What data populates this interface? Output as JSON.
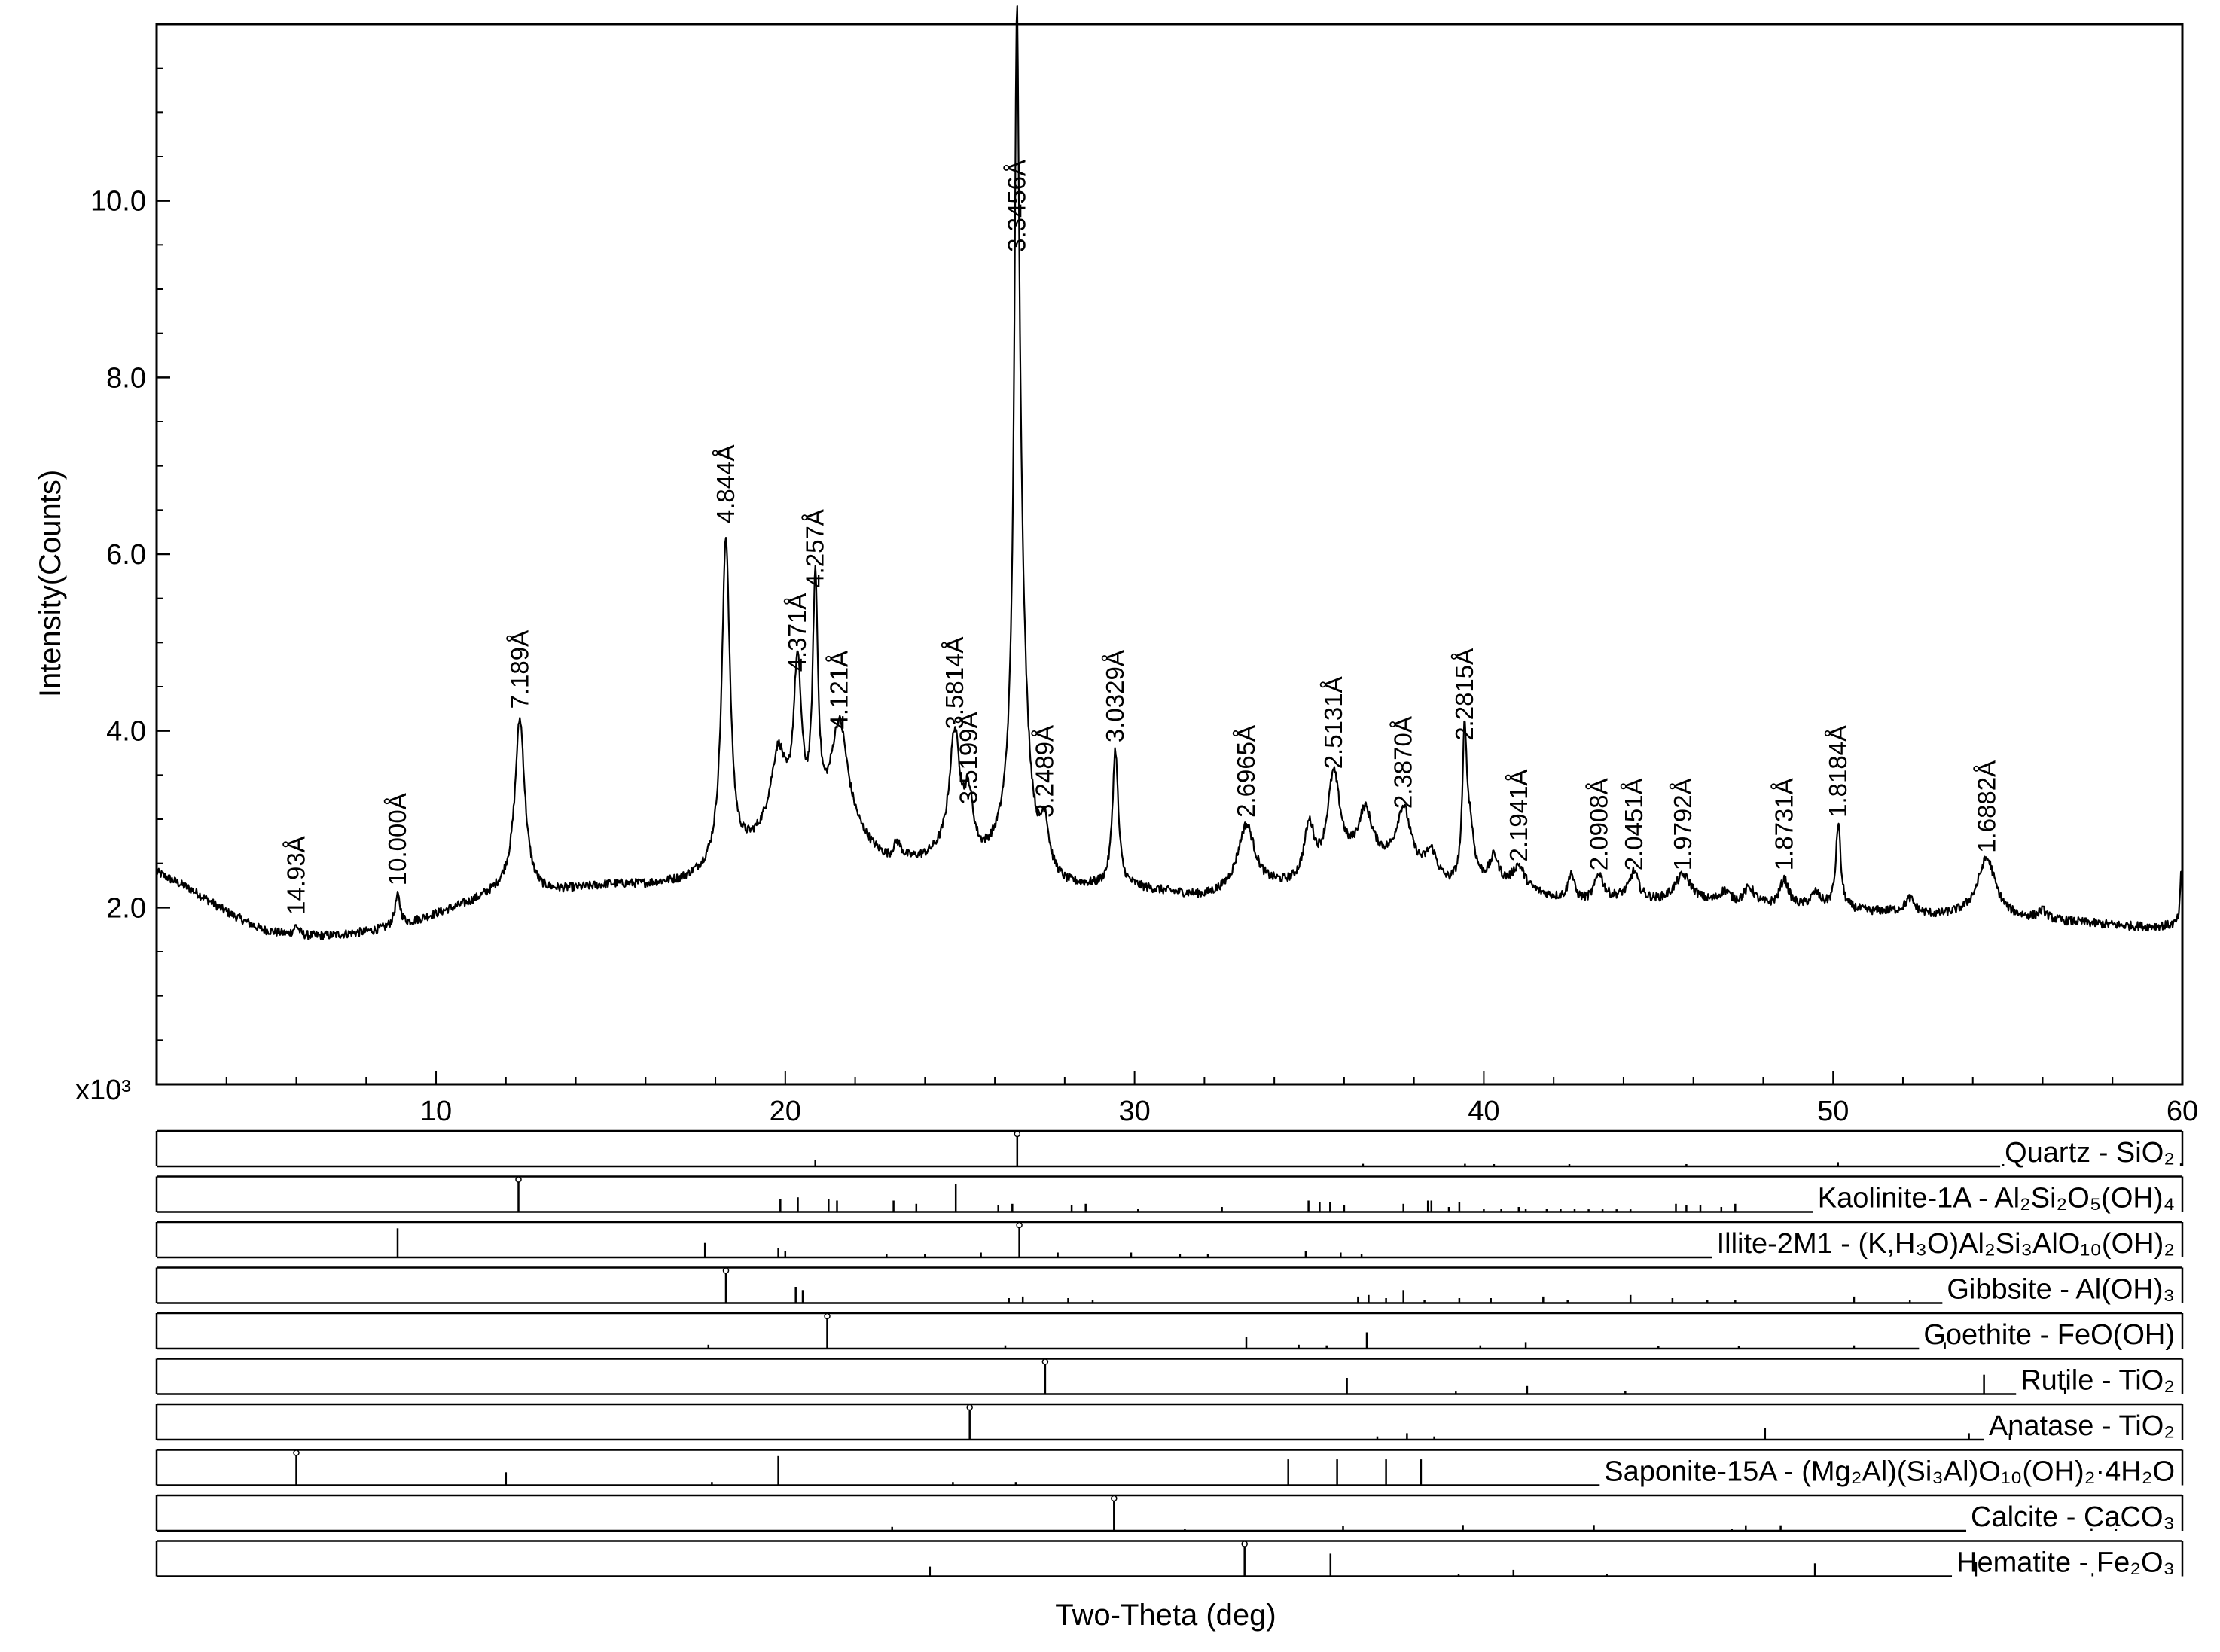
{
  "chart_data": {
    "type": "line",
    "title": "",
    "xlabel": "Two-Theta (deg)",
    "ylabel": "Intensity(Counts)",
    "y_multiplier_label": "x10³",
    "xlim": [
      2,
      60
    ],
    "ylim": [
      0,
      12
    ],
    "x_ticks": [
      "10",
      "20",
      "30",
      "40",
      "50",
      "60"
    ],
    "y_ticks": [
      "2.0",
      "4.0",
      "6.0",
      "8.0",
      "10.0"
    ],
    "grid": false,
    "legend": "none",
    "colors": {
      "line": "#000000",
      "background": "#ffffff"
    },
    "pattern": {
      "baseline": [
        [
          2.0,
          2.4
        ],
        [
          3.0,
          2.2
        ],
        [
          4.0,
          1.95
        ],
        [
          5.0,
          1.75
        ],
        [
          6.0,
          1.67
        ],
        [
          7.0,
          1.68
        ],
        [
          8.0,
          1.72
        ],
        [
          9.0,
          1.78
        ],
        [
          10.0,
          1.92
        ],
        [
          11.0,
          2.05
        ],
        [
          12.0,
          2.2
        ],
        [
          13.0,
          2.15
        ],
        [
          14.0,
          2.2
        ],
        [
          15.0,
          2.25
        ],
        [
          16.0,
          2.25
        ],
        [
          17.0,
          2.28
        ],
        [
          17.6,
          2.35
        ],
        [
          18.6,
          2.5
        ],
        [
          19.5,
          2.75
        ],
        [
          21.0,
          2.75
        ],
        [
          22.0,
          2.7
        ],
        [
          23.0,
          2.45
        ],
        [
          24.0,
          2.5
        ],
        [
          24.8,
          2.6
        ],
        [
          25.6,
          2.45
        ],
        [
          26.2,
          2.5
        ],
        [
          27.0,
          2.4
        ],
        [
          28.0,
          2.2
        ],
        [
          29.0,
          2.2
        ],
        [
          30.0,
          2.2
        ],
        [
          31.0,
          2.15
        ],
        [
          32.0,
          2.1
        ],
        [
          33.0,
          2.15
        ],
        [
          34.0,
          2.2
        ],
        [
          35.0,
          2.2
        ],
        [
          36.0,
          2.4
        ],
        [
          37.0,
          2.45
        ],
        [
          38.0,
          2.35
        ],
        [
          39.0,
          2.2
        ],
        [
          40.0,
          2.25
        ],
        [
          41.0,
          2.2
        ],
        [
          42.0,
          2.1
        ],
        [
          43.0,
          2.05
        ],
        [
          44.0,
          2.1
        ],
        [
          45.0,
          2.05
        ],
        [
          46.0,
          2.05
        ],
        [
          47.0,
          2.0
        ],
        [
          48.0,
          2.0
        ],
        [
          49.0,
          2.0
        ],
        [
          50.0,
          2.0
        ],
        [
          51.0,
          1.95
        ],
        [
          52.0,
          1.95
        ],
        [
          53.0,
          1.9
        ],
        [
          54.0,
          1.92
        ],
        [
          55.0,
          1.88
        ],
        [
          56.0,
          1.85
        ],
        [
          57.0,
          1.83
        ],
        [
          58.0,
          1.8
        ],
        [
          59.0,
          1.78
        ],
        [
          59.9,
          1.8
        ]
      ],
      "peaks": [
        [
          6.0,
          0.12,
          0.1
        ],
        [
          8.9,
          0.35,
          0.1
        ],
        [
          12.4,
          1.95,
          0.17
        ],
        [
          18.3,
          3.7,
          0.14
        ],
        [
          19.8,
          0.9,
          0.25
        ],
        [
          20.35,
          1.8,
          0.14
        ],
        [
          20.86,
          2.7,
          0.09
        ],
        [
          21.55,
          1.3,
          0.3
        ],
        [
          23.2,
          0.2,
          0.15
        ],
        [
          24.85,
          1.3,
          0.18
        ],
        [
          25.25,
          0.6,
          0.15
        ],
        [
          26.63,
          7.0,
          0.08
        ],
        [
          26.7,
          3.0,
          0.22
        ],
        [
          27.43,
          0.5,
          0.12
        ],
        [
          29.45,
          1.55,
          0.1
        ],
        [
          33.2,
          0.75,
          0.3
        ],
        [
          35.0,
          0.65,
          0.18
        ],
        [
          35.7,
          1.1,
          0.22
        ],
        [
          36.6,
          0.6,
          0.25
        ],
        [
          37.7,
          0.7,
          0.25
        ],
        [
          38.5,
          0.3,
          0.2
        ],
        [
          39.45,
          1.6,
          0.07
        ],
        [
          39.6,
          0.6,
          0.14
        ],
        [
          40.3,
          0.3,
          0.15
        ],
        [
          41.0,
          0.25,
          0.2
        ],
        [
          42.5,
          0.3,
          0.1
        ],
        [
          43.3,
          0.3,
          0.15
        ],
        [
          44.3,
          0.3,
          0.15
        ],
        [
          45.7,
          0.3,
          0.3
        ],
        [
          46.9,
          0.15,
          0.2
        ],
        [
          47.6,
          0.2,
          0.2
        ],
        [
          48.6,
          0.3,
          0.15
        ],
        [
          49.5,
          0.15,
          0.15
        ],
        [
          50.15,
          0.95,
          0.08
        ],
        [
          52.2,
          0.15,
          0.15
        ],
        [
          54.4,
          0.65,
          0.3
        ],
        [
          56.0,
          0.1,
          0.15
        ],
        [
          59.97,
          0.6,
          0.04
        ]
      ]
    },
    "peak_labels": [
      {
        "x": 6.0,
        "y": 1.85,
        "text": "14.93Å"
      },
      {
        "x": 8.9,
        "y": 2.18,
        "text": "10.000Å"
      },
      {
        "x": 12.4,
        "y": 4.18,
        "text": "7.189Å"
      },
      {
        "x": 18.3,
        "y": 6.28,
        "text": "4.844Å"
      },
      {
        "x": 20.35,
        "y": 4.6,
        "text": "4.371Å"
      },
      {
        "x": 20.86,
        "y": 5.55,
        "text": "4.257Å"
      },
      {
        "x": 21.55,
        "y": 3.95,
        "text": "4.121Å"
      },
      {
        "x": 24.85,
        "y": 3.95,
        "text": "3.5814Å"
      },
      {
        "x": 25.25,
        "y": 3.1,
        "text": "3.5199Å"
      },
      {
        "x": 26.63,
        "y": 9.35,
        "text": "3.3456Å"
      },
      {
        "x": 27.43,
        "y": 2.95,
        "text": "3.2489Å"
      },
      {
        "x": 29.45,
        "y": 3.8,
        "text": "3.0329Å"
      },
      {
        "x": 33.2,
        "y": 2.95,
        "text": "2.6965Å"
      },
      {
        "x": 35.7,
        "y": 3.5,
        "text": "2.5131Å"
      },
      {
        "x": 37.7,
        "y": 3.05,
        "text": "2.3870Å"
      },
      {
        "x": 39.45,
        "y": 3.82,
        "text": "2.2815Å"
      },
      {
        "x": 41.0,
        "y": 2.45,
        "text": "2.1941Å"
      },
      {
        "x": 43.3,
        "y": 2.35,
        "text": "2.0908Å"
      },
      {
        "x": 44.3,
        "y": 2.35,
        "text": "2.0451Å"
      },
      {
        "x": 45.7,
        "y": 2.35,
        "text": "1.9792Å"
      },
      {
        "x": 48.6,
        "y": 2.35,
        "text": "1.8731Å"
      },
      {
        "x": 50.15,
        "y": 2.95,
        "text": "1.8184Å"
      },
      {
        "x": 54.4,
        "y": 2.55,
        "text": "1.6882Å"
      }
    ],
    "reference_patterns": [
      {
        "name": "Quartz - SiO₂",
        "lines": [
          [
            26.64,
            100
          ],
          [
            20.86,
            20
          ],
          [
            36.54,
            8
          ],
          [
            39.46,
            8
          ],
          [
            40.29,
            4
          ],
          [
            42.45,
            6
          ],
          [
            45.8,
            4
          ],
          [
            50.14,
            13
          ],
          [
            54.87,
            4
          ],
          [
            55.3,
            2
          ],
          [
            59.96,
            9
          ]
        ]
      },
      {
        "name": "Kaolinite-1A - Al₂Si₂O₅(OH)₄",
        "lines": [
          [
            12.36,
            100
          ],
          [
            19.86,
            40
          ],
          [
            20.36,
            45
          ],
          [
            21.24,
            40
          ],
          [
            21.48,
            35
          ],
          [
            23.1,
            35
          ],
          [
            23.75,
            25
          ],
          [
            24.88,
            85
          ],
          [
            26.1,
            20
          ],
          [
            26.5,
            25
          ],
          [
            28.2,
            20
          ],
          [
            28.6,
            25
          ],
          [
            30.1,
            10
          ],
          [
            32.5,
            15
          ],
          [
            34.98,
            35
          ],
          [
            35.3,
            30
          ],
          [
            35.6,
            30
          ],
          [
            36.0,
            20
          ],
          [
            37.7,
            25
          ],
          [
            38.4,
            35
          ],
          [
            38.5,
            35
          ],
          [
            39.0,
            15
          ],
          [
            39.3,
            30
          ],
          [
            40.0,
            10
          ],
          [
            40.5,
            10
          ],
          [
            41.0,
            15
          ],
          [
            41.2,
            10
          ],
          [
            41.8,
            10
          ],
          [
            42.2,
            10
          ],
          [
            42.6,
            10
          ],
          [
            43.0,
            8
          ],
          [
            43.4,
            8
          ],
          [
            43.8,
            8
          ],
          [
            44.2,
            8
          ],
          [
            45.5,
            25
          ],
          [
            45.8,
            20
          ],
          [
            46.2,
            20
          ],
          [
            46.8,
            15
          ],
          [
            47.2,
            25
          ]
        ]
      },
      {
        "name": "Illite-2M1 - (K,H₃O)Al₂Si₃AlO₁₀(OH)₂",
        "lines": [
          [
            8.9,
            90
          ],
          [
            17.7,
            45
          ],
          [
            19.8,
            30
          ],
          [
            20.0,
            20
          ],
          [
            22.9,
            10
          ],
          [
            24.0,
            10
          ],
          [
            25.6,
            15
          ],
          [
            26.7,
            100
          ],
          [
            27.8,
            15
          ],
          [
            29.9,
            15
          ],
          [
            31.3,
            10
          ],
          [
            32.1,
            10
          ],
          [
            34.9,
            20
          ],
          [
            35.9,
            15
          ],
          [
            36.5,
            10
          ]
        ]
      },
      {
        "name": "Gibbsite - Al(OH)₃",
        "lines": [
          [
            18.3,
            100
          ],
          [
            20.3,
            50
          ],
          [
            20.5,
            40
          ],
          [
            26.4,
            15
          ],
          [
            26.8,
            20
          ],
          [
            28.1,
            15
          ],
          [
            28.8,
            10
          ],
          [
            36.4,
            20
          ],
          [
            36.7,
            25
          ],
          [
            37.2,
            15
          ],
          [
            37.7,
            40
          ],
          [
            38.3,
            10
          ],
          [
            39.3,
            15
          ],
          [
            40.2,
            15
          ],
          [
            41.7,
            20
          ],
          [
            42.4,
            10
          ],
          [
            44.2,
            25
          ],
          [
            45.4,
            15
          ],
          [
            46.4,
            10
          ],
          [
            47.2,
            10
          ],
          [
            50.6,
            20
          ],
          [
            52.2,
            10
          ]
        ]
      },
      {
        "name": "Goethite - FeO(OH)",
        "lines": [
          [
            17.8,
            12
          ],
          [
            21.2,
            100
          ],
          [
            26.3,
            10
          ],
          [
            33.2,
            35
          ],
          [
            34.7,
            12
          ],
          [
            35.5,
            10
          ],
          [
            36.65,
            50
          ],
          [
            39.9,
            10
          ],
          [
            41.2,
            20
          ],
          [
            45.0,
            8
          ],
          [
            47.3,
            8
          ],
          [
            50.6,
            10
          ],
          [
            53.2,
            20
          ]
        ]
      },
      {
        "name": "Rutile - TiO₂",
        "lines": [
          [
            27.44,
            100
          ],
          [
            36.08,
            50
          ],
          [
            39.2,
            8
          ],
          [
            41.24,
            25
          ],
          [
            44.05,
            10
          ],
          [
            54.32,
            60
          ],
          [
            56.64,
            20
          ]
        ]
      },
      {
        "name": "Anatase - TiO₂",
        "lines": [
          [
            25.28,
            100
          ],
          [
            36.95,
            10
          ],
          [
            37.8,
            20
          ],
          [
            38.58,
            10
          ],
          [
            48.05,
            35
          ],
          [
            53.89,
            20
          ],
          [
            55.06,
            20
          ]
        ]
      },
      {
        "name": "Saponite-15A - (Mg₂Al)(Si₃Al)O₁₀(OH)₂·4H₂O",
        "lines": [
          [
            6.0,
            100
          ],
          [
            12.0,
            40
          ],
          [
            17.9,
            10
          ],
          [
            19.8,
            90
          ],
          [
            24.8,
            10
          ],
          [
            26.6,
            10
          ],
          [
            34.4,
            80
          ],
          [
            35.8,
            80
          ],
          [
            37.2,
            80
          ],
          [
            38.2,
            80
          ]
        ]
      },
      {
        "name": "Calcite - CaCO₃",
        "lines": [
          [
            23.06,
            12
          ],
          [
            29.41,
            100
          ],
          [
            31.44,
            3
          ],
          [
            35.97,
            14
          ],
          [
            39.4,
            18
          ],
          [
            43.15,
            18
          ],
          [
            47.1,
            5
          ],
          [
            47.5,
            17
          ],
          [
            48.5,
            17
          ],
          [
            57.4,
            8
          ],
          [
            58.1,
            3
          ]
        ]
      },
      {
        "name": "Hematite - Fe₂O₃",
        "lines": [
          [
            24.14,
            30
          ],
          [
            33.15,
            100
          ],
          [
            35.61,
            70
          ],
          [
            39.28,
            3
          ],
          [
            40.85,
            20
          ],
          [
            43.52,
            3
          ],
          [
            49.48,
            40
          ],
          [
            54.09,
            45
          ],
          [
            57.43,
            10
          ]
        ]
      }
    ]
  }
}
